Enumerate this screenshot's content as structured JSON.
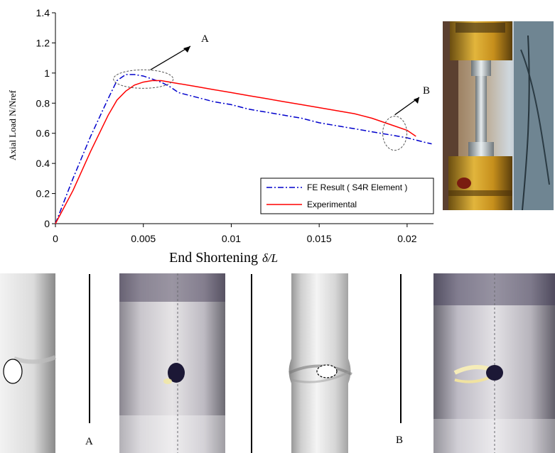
{
  "chart_data": {
    "type": "line",
    "xlabel_text": "End Shortening",
    "xlabel_math": "δ/L",
    "ylabel": "Axial Load N/Nref",
    "xlim": [
      0,
      0.0215
    ],
    "ylim": [
      0,
      1.4
    ],
    "x_ticks": [
      "0",
      "0.005",
      "0.01",
      "0.015",
      "0.02"
    ],
    "y_ticks": [
      "0",
      "0.2",
      "0.4",
      "0.6",
      "0.8",
      "1",
      "1.2",
      "1.4"
    ],
    "grid": false,
    "legend_position": "bottom-right",
    "annotations": [
      "A",
      "B"
    ],
    "series": [
      {
        "name": "FE Result ( S4R Element )",
        "color": "#0000cc",
        "style": "dash-dot",
        "points": [
          [
            0,
            0
          ],
          [
            0.001,
            0.3
          ],
          [
            0.002,
            0.58
          ],
          [
            0.003,
            0.83
          ],
          [
            0.0035,
            0.95
          ],
          [
            0.004,
            0.99
          ],
          [
            0.0045,
            0.99
          ],
          [
            0.005,
            0.98
          ],
          [
            0.0055,
            0.96
          ],
          [
            0.006,
            0.94
          ],
          [
            0.0065,
            0.91
          ],
          [
            0.007,
            0.87
          ],
          [
            0.008,
            0.84
          ],
          [
            0.009,
            0.81
          ],
          [
            0.01,
            0.79
          ],
          [
            0.011,
            0.76
          ],
          [
            0.012,
            0.74
          ],
          [
            0.013,
            0.72
          ],
          [
            0.014,
            0.7
          ],
          [
            0.015,
            0.67
          ],
          [
            0.016,
            0.65
          ],
          [
            0.017,
            0.63
          ],
          [
            0.018,
            0.61
          ],
          [
            0.019,
            0.59
          ],
          [
            0.02,
            0.57
          ],
          [
            0.021,
            0.54
          ],
          [
            0.0214,
            0.53
          ]
        ]
      },
      {
        "name": "Experimental",
        "color": "#ff0000",
        "style": "solid",
        "points": [
          [
            0,
            0
          ],
          [
            0.001,
            0.22
          ],
          [
            0.002,
            0.48
          ],
          [
            0.003,
            0.72
          ],
          [
            0.0035,
            0.82
          ],
          [
            0.004,
            0.88
          ],
          [
            0.0045,
            0.92
          ],
          [
            0.005,
            0.94
          ],
          [
            0.0055,
            0.95
          ],
          [
            0.006,
            0.95
          ],
          [
            0.007,
            0.93
          ],
          [
            0.008,
            0.91
          ],
          [
            0.009,
            0.89
          ],
          [
            0.01,
            0.87
          ],
          [
            0.011,
            0.85
          ],
          [
            0.012,
            0.83
          ],
          [
            0.013,
            0.81
          ],
          [
            0.014,
            0.79
          ],
          [
            0.015,
            0.77
          ],
          [
            0.016,
            0.75
          ],
          [
            0.017,
            0.73
          ],
          [
            0.018,
            0.7
          ],
          [
            0.019,
            0.66
          ],
          [
            0.02,
            0.62
          ],
          [
            0.0205,
            0.58
          ]
        ]
      }
    ]
  },
  "figure_labels": {
    "a": "A",
    "b": "B"
  }
}
